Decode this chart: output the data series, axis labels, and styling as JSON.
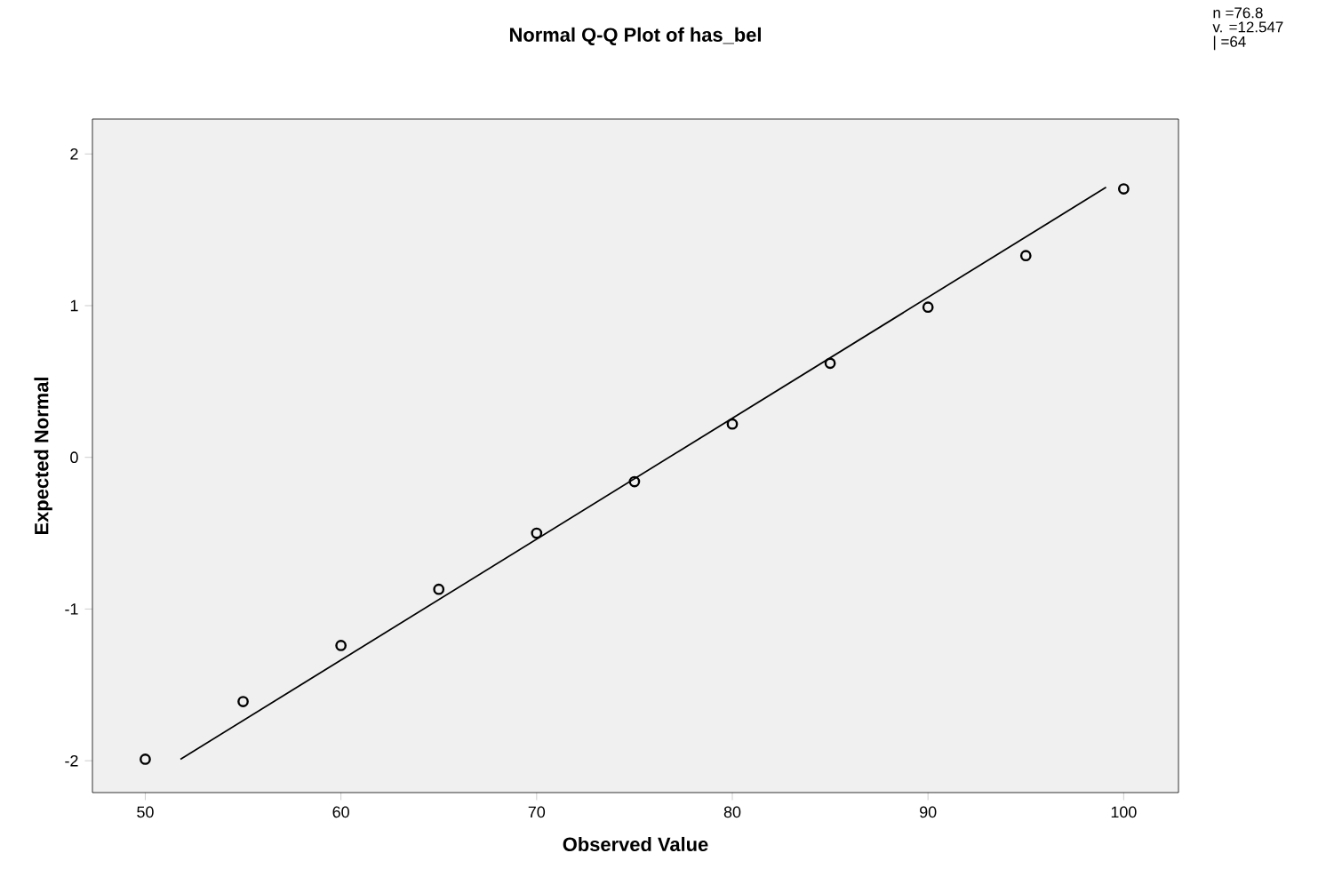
{
  "chart_data": {
    "type": "scatter",
    "title": "Normal Q-Q Plot of has_bel",
    "xlabel": "Observed Value",
    "ylabel": "Expected Normal",
    "annotations": [
      "n =76.8",
      "v. =12.547",
      "| =64"
    ],
    "series": [
      {
        "color": "#000000",
        "marker": "circle",
        "x": [
          50,
          55,
          60,
          65,
          70,
          75,
          80,
          85,
          90,
          95,
          100
        ],
        "values": [
          -1.99,
          -1.61,
          -1.24,
          -0.87,
          -0.5,
          -0.16,
          0.22,
          0.62,
          0.99,
          1.33,
          1.77
        ]
      },
      {
        "type": "line",
        "color": "#000000",
        "x": [
          51.8,
          99.1
        ],
        "values": [
          -1.99,
          1.78
        ]
      }
    ],
    "xlim": [
      47.3,
      102.8
    ],
    "ylim": [
      -2.21,
      2.23
    ],
    "xticks": [
      50,
      60,
      70,
      80,
      90,
      100
    ],
    "yticks": [
      -2,
      -1,
      0,
      1,
      2
    ]
  }
}
